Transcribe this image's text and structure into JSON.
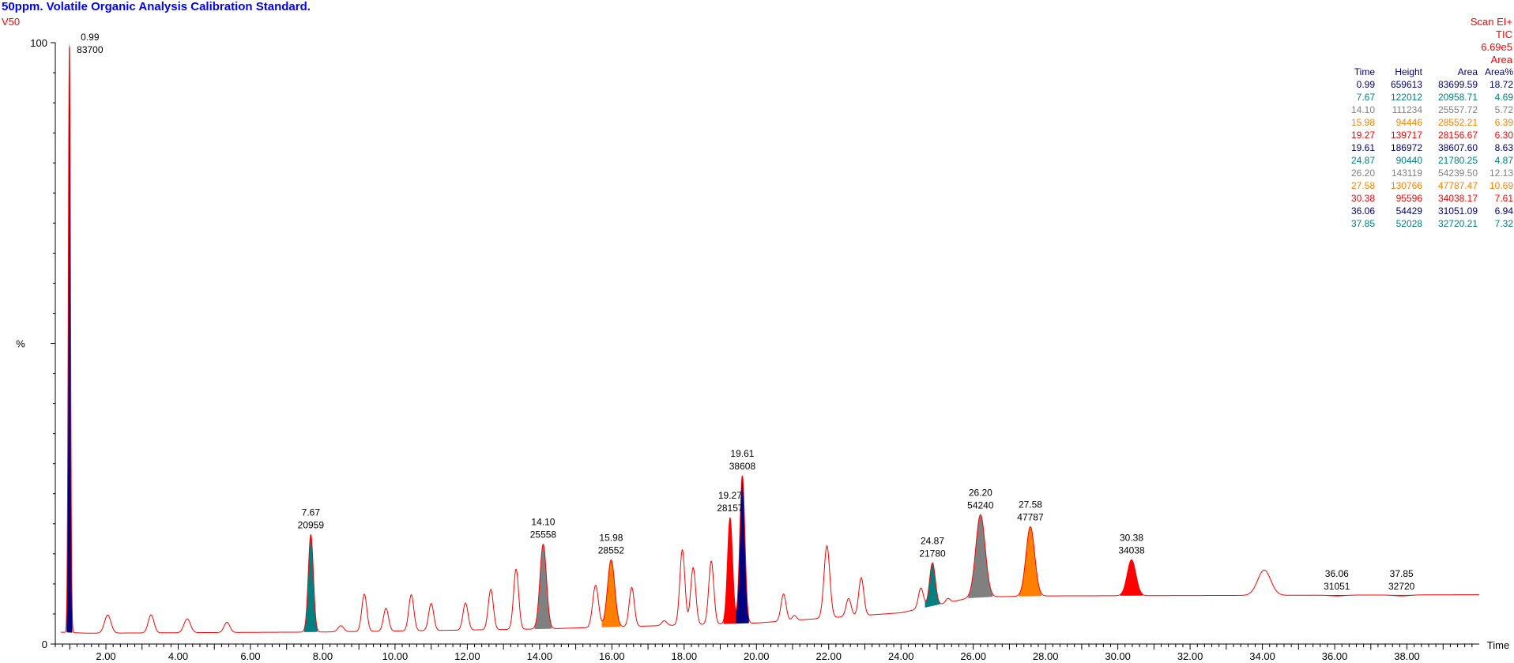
{
  "header": {
    "title": "50ppm. Volatile Organic Analysis Calibration Standard.",
    "subtitle": "V50",
    "scan_mode": "Scan EI+",
    "trace": "TIC",
    "max_intensity": "6.69e5",
    "integration": "Area"
  },
  "peak_table": {
    "columns": [
      "Time",
      "Height",
      "Area",
      "Area%"
    ],
    "rows": [
      {
        "time": "0.99",
        "height": "659613",
        "area": "83699.59",
        "area_pct": "18.72",
        "color": "#000080"
      },
      {
        "time": "7.67",
        "height": "122012",
        "area": "20958.71",
        "area_pct": "4.69",
        "color": "#008080"
      },
      {
        "time": "14.10",
        "height": "111234",
        "area": "25557.72",
        "area_pct": "5.72",
        "color": "#808080"
      },
      {
        "time": "15.98",
        "height": "94446",
        "area": "28552.21",
        "area_pct": "6.39",
        "color": "#ff8000"
      },
      {
        "time": "19.27",
        "height": "139717",
        "area": "28156.67",
        "area_pct": "6.30",
        "color": "#ff0000"
      },
      {
        "time": "19.61",
        "height": "186972",
        "area": "38607.60",
        "area_pct": "8.63",
        "color": "#000080"
      },
      {
        "time": "24.87",
        "height": "90440",
        "area": "21780.25",
        "area_pct": "4.87",
        "color": "#008080"
      },
      {
        "time": "26.20",
        "height": "143119",
        "area": "54239.50",
        "area_pct": "12.13",
        "color": "#808080"
      },
      {
        "time": "27.58",
        "height": "130766",
        "area": "47787.47",
        "area_pct": "10.69",
        "color": "#ff8000"
      },
      {
        "time": "30.38",
        "height": "95596",
        "area": "34038.17",
        "area_pct": "7.61",
        "color": "#ff0000"
      },
      {
        "time": "36.06",
        "height": "54429",
        "area": "31051.09",
        "area_pct": "6.94",
        "color": "#000080"
      },
      {
        "time": "37.85",
        "height": "52028",
        "area": "32720.21",
        "area_pct": "7.32",
        "color": "#008080"
      }
    ]
  },
  "chart_data": {
    "type": "line",
    "xlabel": "Time",
    "ylabel": "%",
    "xlim": [
      0.6,
      40.0
    ],
    "ylim": [
      0,
      100
    ],
    "x_ticks": [
      "2.00",
      "4.00",
      "6.00",
      "8.00",
      "10.00",
      "12.00",
      "14.00",
      "16.00",
      "18.00",
      "20.00",
      "22.00",
      "24.00",
      "26.00",
      "28.00",
      "30.00",
      "32.00",
      "34.00",
      "36.00",
      "38.00"
    ],
    "y_ticks": [
      "0",
      "%",
      "100"
    ],
    "grid": false,
    "trace_color": "#ff0000",
    "baseline": [
      [
        0.6,
        2.0
      ],
      [
        1.5,
        1.8
      ],
      [
        8,
        2.0
      ],
      [
        14,
        2.5
      ],
      [
        20,
        3.5
      ],
      [
        24,
        5.2
      ],
      [
        26,
        7.8
      ],
      [
        28,
        8.0
      ],
      [
        40,
        8.2
      ]
    ],
    "minor_peaks": [
      {
        "x": 2.05,
        "h": 3.0,
        "w": 0.09
      },
      {
        "x": 3.25,
        "h": 3.0,
        "w": 0.08
      },
      {
        "x": 4.25,
        "h": 2.3,
        "w": 0.09
      },
      {
        "x": 5.35,
        "h": 1.7,
        "w": 0.08
      },
      {
        "x": 8.5,
        "h": 1.0,
        "w": 0.08
      },
      {
        "x": 9.15,
        "h": 6.2,
        "w": 0.07
      },
      {
        "x": 9.75,
        "h": 3.8,
        "w": 0.07
      },
      {
        "x": 10.45,
        "h": 6.0,
        "w": 0.07
      },
      {
        "x": 11.0,
        "h": 4.5,
        "w": 0.07
      },
      {
        "x": 11.95,
        "h": 4.5,
        "w": 0.07
      },
      {
        "x": 12.65,
        "h": 6.7,
        "w": 0.07
      },
      {
        "x": 13.35,
        "h": 10.0,
        "w": 0.07
      },
      {
        "x": 15.55,
        "h": 7.0,
        "w": 0.08
      },
      {
        "x": 16.55,
        "h": 6.5,
        "w": 0.07
      },
      {
        "x": 17.45,
        "h": 0.8,
        "w": 0.07
      },
      {
        "x": 17.95,
        "h": 12.5,
        "w": 0.07
      },
      {
        "x": 18.25,
        "h": 9.5,
        "w": 0.07
      },
      {
        "x": 18.75,
        "h": 10.5,
        "w": 0.07
      },
      {
        "x": 20.75,
        "h": 4.5,
        "w": 0.07
      },
      {
        "x": 21.05,
        "h": 0.8,
        "w": 0.06
      },
      {
        "x": 21.95,
        "h": 12.0,
        "w": 0.08
      },
      {
        "x": 22.55,
        "h": 3.0,
        "w": 0.07
      },
      {
        "x": 22.9,
        "h": 6.3,
        "w": 0.07
      },
      {
        "x": 24.55,
        "h": 3.4,
        "w": 0.07
      },
      {
        "x": 25.3,
        "h": 0.7,
        "w": 0.06
      },
      {
        "x": 34.05,
        "h": 4.2,
        "w": 0.18
      }
    ],
    "labeled_peaks": [
      {
        "time": 0.99,
        "area": 83700,
        "pct": 100.0,
        "w": 0.03,
        "color": "#000080"
      },
      {
        "time": 7.67,
        "area": 20959,
        "pct": 18.2,
        "w": 0.07,
        "color": "#008080"
      },
      {
        "time": 14.1,
        "area": 25558,
        "pct": 16.6,
        "w": 0.09,
        "color": "#808080"
      },
      {
        "time": 15.98,
        "area": 28552,
        "pct": 14.0,
        "w": 0.1,
        "color": "#ff8000"
      },
      {
        "time": 19.27,
        "area": 28157,
        "pct": 21.0,
        "w": 0.07,
        "color": "#ff0000"
      },
      {
        "time": 19.61,
        "area": 38608,
        "pct": 28.0,
        "w": 0.07,
        "color": "#000080"
      },
      {
        "time": 24.87,
        "area": 21780,
        "pct": 13.5,
        "w": 0.08,
        "color": "#008080"
      },
      {
        "time": 26.2,
        "area": 54240,
        "pct": 21.5,
        "w": 0.13,
        "color": "#808080"
      },
      {
        "time": 27.58,
        "area": 47787,
        "pct": 19.5,
        "w": 0.12,
        "color": "#ff8000"
      },
      {
        "time": 30.38,
        "area": 34038,
        "pct": 14.0,
        "w": 0.12,
        "color": "#ff0000"
      },
      {
        "time": 36.06,
        "area": 31051,
        "pct": 8.0,
        "w": 0.2,
        "color": "#000080"
      },
      {
        "time": 37.85,
        "area": 32720,
        "pct": 8.0,
        "w": 0.21,
        "color": "#008080"
      }
    ]
  }
}
